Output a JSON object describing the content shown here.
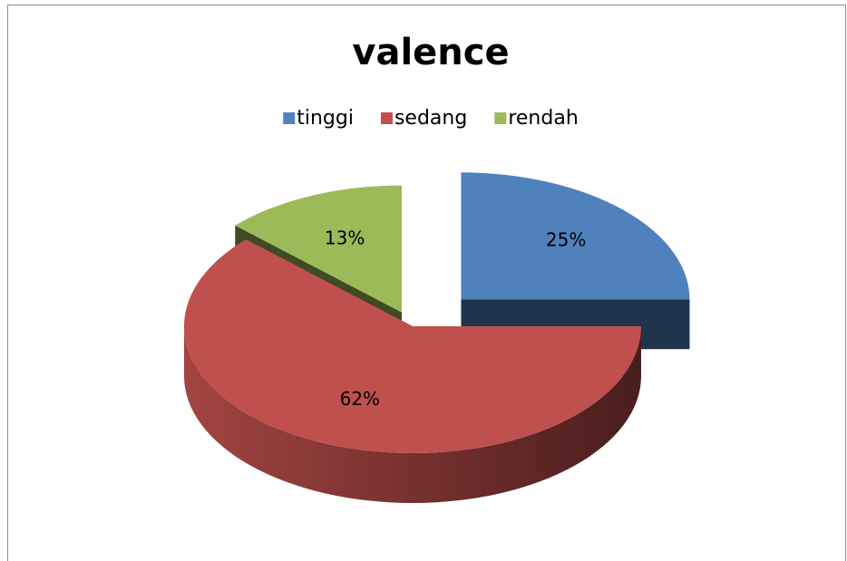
{
  "chart_data": {
    "type": "pie",
    "title": "valence",
    "categories": [
      "tinggi",
      "sedang",
      "rendah"
    ],
    "values": [
      25,
      62,
      13
    ],
    "value_labels": [
      "25%",
      "62%",
      "13%"
    ],
    "colors": [
      "#4f81bd",
      "#c0504d",
      "#9bbb59"
    ],
    "legend": "top"
  }
}
